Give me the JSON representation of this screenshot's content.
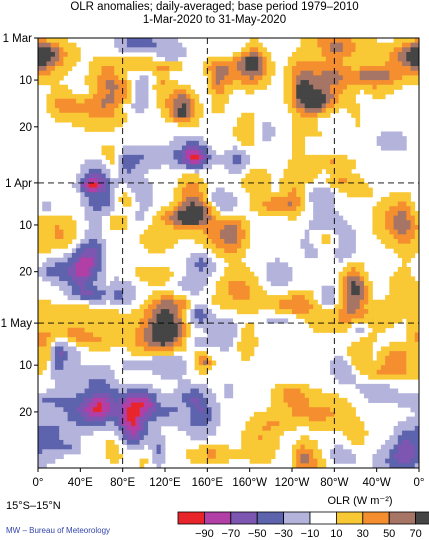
{
  "chart_data": {
    "type": "heatmap",
    "title": "OLR anomalies; daily-averaged; base period 1979–2010",
    "subtitle": "1-Mar-2020 to 31-May-2020",
    "x_ticks": [
      "0°",
      "40°E",
      "80°E",
      "120°E",
      "160°E",
      "160°W",
      "120°W",
      "80°W",
      "40°W",
      "0°"
    ],
    "x_tick_lon": [
      0,
      40,
      80,
      120,
      160,
      200,
      240,
      280,
      320,
      360
    ],
    "y_ticks": [
      "1 Mar",
      "10",
      "20",
      "1 Apr",
      "10",
      "20",
      "1 May",
      "10",
      "20"
    ],
    "y_tick_day": [
      0,
      9,
      19,
      31,
      40,
      50,
      61,
      70,
      80
    ],
    "xlim": [
      0,
      360
    ],
    "ylim": [
      0,
      92
    ],
    "dashed_lon": [
      80,
      160,
      280
    ],
    "dashed_day": [
      31,
      61
    ],
    "colorbar": {
      "label": "OLR (W m⁻²)",
      "tick_labels": [
        "−90",
        "−70",
        "−50",
        "−30",
        "−10",
        "10",
        "30",
        "50",
        "70"
      ],
      "levels": [
        -90,
        -70,
        -50,
        -30,
        -10,
        10,
        30,
        50,
        70
      ],
      "colors": [
        "#e8252b",
        "#b23fa6",
        "#7c56b0",
        "#5d63ad",
        "#b3b3dc",
        "#ffffff",
        "#f9c835",
        "#f48e2f",
        "#a67565",
        "#454545"
      ]
    }
  },
  "region_label": "15°S–15°N",
  "credit": "MW – Bureau of Meteorology"
}
